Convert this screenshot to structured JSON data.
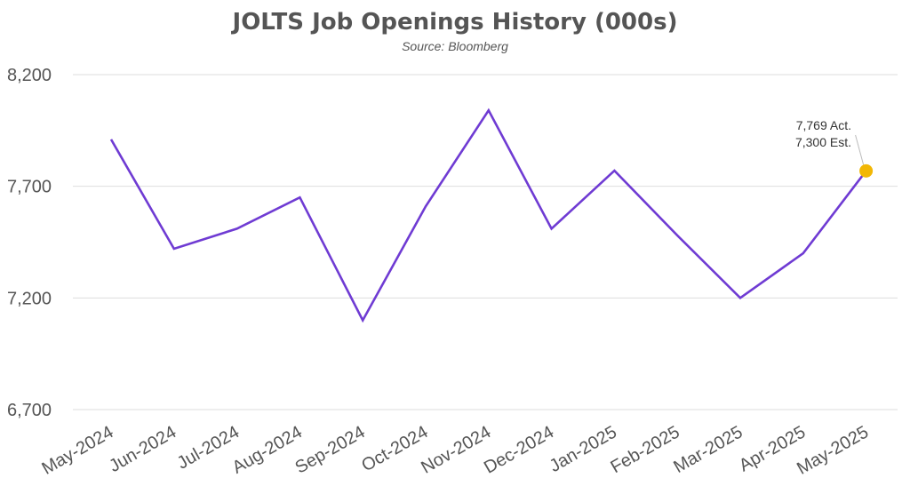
{
  "chart_data": {
    "type": "line",
    "title": "JOLTS Job Openings History (000s)",
    "subtitle": "Source: Bloomberg",
    "xlabel": "",
    "ylabel": "",
    "categories": [
      "May-2024",
      "Jun-2024",
      "Jul-2024",
      "Aug-2024",
      "Sep-2024",
      "Oct-2024",
      "Nov-2024",
      "Dec-2024",
      "Jan-2025",
      "Feb-2025",
      "Mar-2025",
      "Apr-2025",
      "May-2025"
    ],
    "series": [
      {
        "values": [
          7910,
          7420,
          7510,
          7650,
          7100,
          7610,
          8040,
          7510,
          7770,
          7480,
          7200,
          7400,
          7769
        ]
      }
    ],
    "ylim": [
      6700,
      8200
    ],
    "yticks": [
      "6,700",
      "7,200",
      "7,700",
      "8,200"
    ],
    "ytick_values": [
      6700,
      7200,
      7700,
      8200
    ],
    "grid": "horizontal",
    "colors": {
      "line": "#6f3bd3",
      "marker": "#f2b705",
      "grid": "#dddddd",
      "text": "#555555"
    },
    "annotation": {
      "line1": "7,769 Act.",
      "line2": "7,300 Est."
    }
  }
}
